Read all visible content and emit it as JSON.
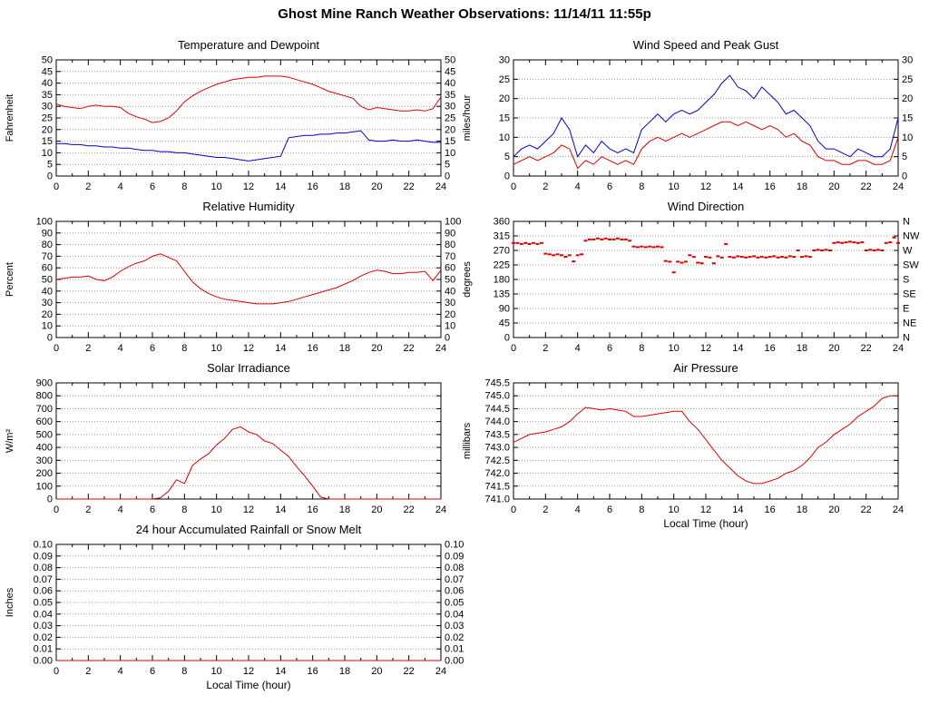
{
  "page_title": "Ghost Mine Ranch Weather Observations: 11/14/11 11:55p",
  "colors": {
    "red": "#dd0000",
    "blue": "#0000cc",
    "grid": "#999999",
    "axis": "#000000"
  },
  "x_axis": {
    "min": 0,
    "max": 24,
    "major_tick": 2,
    "minor_tick": 1,
    "label": "Local Time (hour)",
    "tick_labels": [
      "0",
      "2",
      "4",
      "6",
      "8",
      "10",
      "12",
      "14",
      "16",
      "18",
      "20",
      "22",
      "24"
    ]
  },
  "chart_data": "see charts[] below",
  "charts": [
    {
      "id": "temperature-dewpoint",
      "type": "line",
      "title": "Temperature and Dewpoint",
      "ylabel": "Fahrenheit",
      "ymin": 0,
      "ymax": 50,
      "ytick": 5,
      "ydecimals": 0,
      "right": "mirror",
      "show_x_label": false,
      "series": [
        {
          "name": "temperature",
          "color": "red",
          "type": "line",
          "x_start": 0,
          "x_step": 0.5,
          "values": [
            31,
            30,
            29.5,
            29,
            30,
            30.5,
            30,
            30,
            29.5,
            27,
            25.5,
            24.5,
            23,
            23.5,
            25,
            28,
            32,
            34.5,
            36.5,
            38,
            39.5,
            40.5,
            41.5,
            42,
            42.5,
            42.5,
            43,
            43,
            43,
            42.5,
            41.5,
            40.5,
            39.5,
            38,
            36.5,
            35.5,
            34.5,
            33.5,
            30,
            28.5,
            29.5,
            29,
            28.5,
            28,
            28,
            28.5,
            28,
            29,
            34
          ]
        },
        {
          "name": "dewpoint",
          "color": "blue",
          "type": "line",
          "x_start": 0,
          "x_step": 0.5,
          "values": [
            14,
            14,
            13.5,
            13.5,
            13,
            13,
            12.5,
            12.5,
            12,
            12,
            11.5,
            11,
            11,
            10.5,
            10.5,
            10,
            10,
            9.5,
            9,
            8.5,
            8,
            8,
            7.5,
            7,
            6.5,
            7,
            7.5,
            8,
            8.5,
            16.5,
            17,
            17.5,
            17.5,
            18,
            18,
            18.5,
            18.5,
            19,
            19.5,
            15.5,
            15,
            15,
            15.5,
            15,
            15,
            15.5,
            15,
            14.5,
            14.5
          ]
        }
      ]
    },
    {
      "id": "wind-speed-peak-gust",
      "type": "line",
      "title": "Wind Speed and Peak Gust",
      "ylabel": "miles/hour",
      "ymin": 0,
      "ymax": 30,
      "ytick": 5,
      "ydecimals": 0,
      "right": "mirror",
      "show_x_label": false,
      "series": [
        {
          "name": "peak-gust",
          "color": "blue",
          "type": "line",
          "x_start": 0,
          "x_step": 0.5,
          "values": [
            5,
            7,
            8,
            7,
            9,
            11,
            15,
            12,
            5,
            8,
            6,
            9,
            7,
            6,
            7,
            6,
            12,
            14,
            16,
            14,
            16,
            17,
            16,
            17,
            19,
            21,
            24,
            26,
            23,
            22,
            20,
            23,
            21,
            19,
            16,
            17,
            15,
            13,
            9,
            7,
            7,
            6,
            5,
            7,
            6,
            5,
            5,
            7,
            15
          ]
        },
        {
          "name": "wind-speed",
          "color": "red",
          "type": "line",
          "x_start": 0,
          "x_step": 0.5,
          "values": [
            3,
            4,
            5,
            4,
            5,
            6,
            8,
            7,
            2,
            4,
            3,
            5,
            4,
            3,
            4,
            3,
            7,
            9,
            10,
            9,
            10,
            11,
            10,
            11,
            12,
            13,
            14,
            14,
            13,
            14,
            13,
            12,
            13,
            12,
            10,
            11,
            9,
            8,
            5,
            4,
            4,
            3,
            3,
            4,
            4,
            3,
            3,
            4,
            10
          ]
        }
      ]
    },
    {
      "id": "relative-humidity",
      "type": "line",
      "title": "Relative Humidity",
      "ylabel": "Percent",
      "ymin": 0,
      "ymax": 100,
      "ytick": 10,
      "ydecimals": 0,
      "right": "mirror",
      "show_x_label": false,
      "series": [
        {
          "name": "relative-humidity",
          "color": "red",
          "type": "line",
          "x_start": 0,
          "x_step": 0.5,
          "values": [
            50,
            51,
            52,
            52,
            53,
            50,
            49,
            52,
            57,
            61,
            64,
            66,
            70,
            72,
            69,
            66,
            57,
            48,
            42,
            38,
            35,
            33,
            32,
            31,
            30,
            29,
            29,
            29,
            30,
            31,
            33,
            35,
            37,
            39,
            41,
            43,
            46,
            49,
            53,
            56,
            58,
            57,
            55,
            55,
            56,
            56,
            57,
            49,
            58
          ]
        }
      ]
    },
    {
      "id": "wind-direction",
      "type": "scatter",
      "title": "Wind Direction",
      "ylabel": "degrees",
      "ymin": 0,
      "ymax": 360,
      "ytick": 45,
      "ydecimals": 0,
      "right": "compass",
      "compass_labels": [
        "N",
        "NE",
        "E",
        "SE",
        "S",
        "SW",
        "W",
        "NW",
        "N"
      ],
      "show_x_label": false,
      "series": [
        {
          "name": "wind-direction",
          "color": "red",
          "type": "scatter",
          "x_start": 0,
          "x_step": 0.25,
          "values": [
            293,
            293,
            290,
            293,
            290,
            293,
            290,
            293,
            260,
            258,
            255,
            258,
            255,
            250,
            255,
            236,
            255,
            258,
            300,
            304,
            304,
            307,
            304,
            307,
            304,
            304,
            307,
            304,
            304,
            300,
            282,
            280,
            282,
            280,
            282,
            280,
            282,
            280,
            237,
            235,
            202,
            235,
            232,
            235,
            255,
            250,
            232,
            230,
            250,
            248,
            230,
            252,
            248,
            290,
            250,
            248,
            252,
            250,
            248,
            250,
            252,
            248,
            250,
            248,
            250,
            252,
            248,
            250,
            248,
            252,
            250,
            270,
            250,
            252,
            250,
            270,
            272,
            270,
            272,
            270,
            293,
            295,
            293,
            295,
            297,
            295,
            293,
            295,
            270,
            272,
            270,
            272,
            270,
            293,
            295,
            310,
            293
          ]
        }
      ]
    },
    {
      "id": "solar-irradiance",
      "type": "line",
      "title": "Solar Irradiance",
      "ylabel": "W/m²",
      "ymin": 0,
      "ymax": 900,
      "ytick": 100,
      "ydecimals": 0,
      "right": "none",
      "show_x_label": false,
      "series": [
        {
          "name": "solar-irradiance",
          "color": "red",
          "type": "line",
          "x_start": 0,
          "x_step": 0.5,
          "values": [
            0,
            0,
            0,
            0,
            0,
            0,
            0,
            0,
            0,
            0,
            0,
            0,
            0,
            10,
            60,
            150,
            120,
            260,
            310,
            350,
            420,
            470,
            540,
            560,
            520,
            500,
            450,
            430,
            380,
            330,
            250,
            180,
            100,
            15,
            0,
            0,
            0,
            0,
            0,
            0,
            0,
            0,
            0,
            0,
            0,
            0,
            0,
            0,
            0
          ]
        }
      ]
    },
    {
      "id": "air-pressure",
      "type": "line",
      "title": "Air Pressure",
      "ylabel": "millibars",
      "ymin": 741.0,
      "ymax": 745.5,
      "ytick": 0.5,
      "ydecimals": 1,
      "right": "none",
      "show_x_label": true,
      "series": [
        {
          "name": "air-pressure",
          "color": "red",
          "type": "line",
          "x_start": 0,
          "x_step": 0.5,
          "values": [
            743.2,
            743.35,
            743.5,
            743.55,
            743.6,
            743.7,
            743.8,
            744.0,
            744.3,
            744.55,
            744.5,
            744.45,
            744.5,
            744.45,
            744.4,
            744.2,
            744.2,
            744.25,
            744.3,
            744.35,
            744.4,
            744.4,
            744.0,
            743.7,
            743.3,
            742.9,
            742.5,
            742.2,
            741.9,
            741.7,
            741.6,
            741.6,
            741.7,
            741.8,
            742.0,
            742.1,
            742.3,
            742.6,
            743.0,
            743.2,
            743.5,
            743.7,
            743.9,
            744.2,
            744.4,
            744.6,
            744.9,
            745.0,
            745.0
          ]
        }
      ]
    },
    {
      "id": "rainfall-snow-melt",
      "type": "line",
      "title": "24 hour Accumulated Rainfall or Snow Melt",
      "ylabel": "Inches",
      "ymin": 0,
      "ymax": 0.1,
      "ytick": 0.01,
      "ydecimals": 2,
      "right": "mirror",
      "show_x_label": true,
      "series": [
        {
          "name": "accumulated-rainfall",
          "color": "red",
          "type": "line",
          "x_start": 0,
          "x_step": 24,
          "values": [
            0,
            0
          ]
        }
      ]
    }
  ]
}
